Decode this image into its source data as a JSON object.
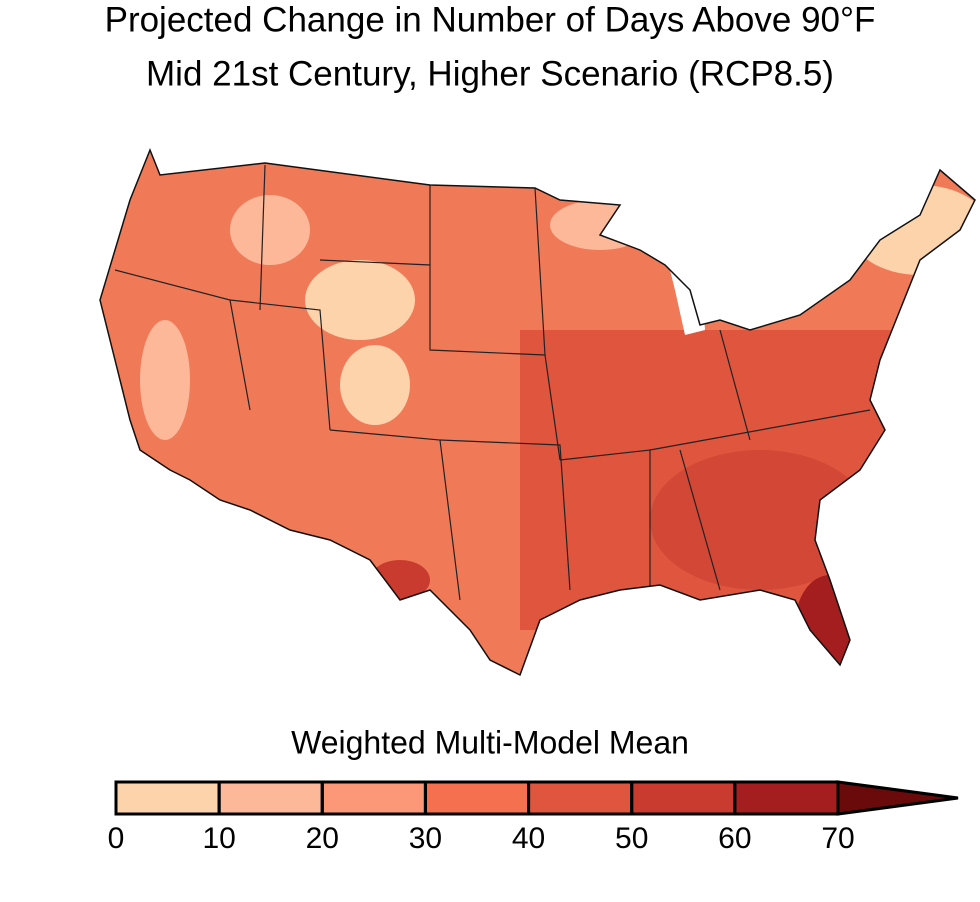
{
  "title": [
    "Projected Change in Number of Days Above 90°F",
    "Mid 21st Century, Higher Scenario (RCP8.5)"
  ],
  "legend": {
    "title": "Weighted Multi-Model Mean",
    "ticks": [
      0,
      10,
      20,
      30,
      40,
      50,
      60,
      70
    ],
    "colors": [
      "#fdd3ab",
      "#fcb898",
      "#fc9878",
      "#f4704f",
      "#e0553d",
      "#c83b2e",
      "#a51e1f",
      "#6b0a0a"
    ],
    "extend": "max"
  }
}
